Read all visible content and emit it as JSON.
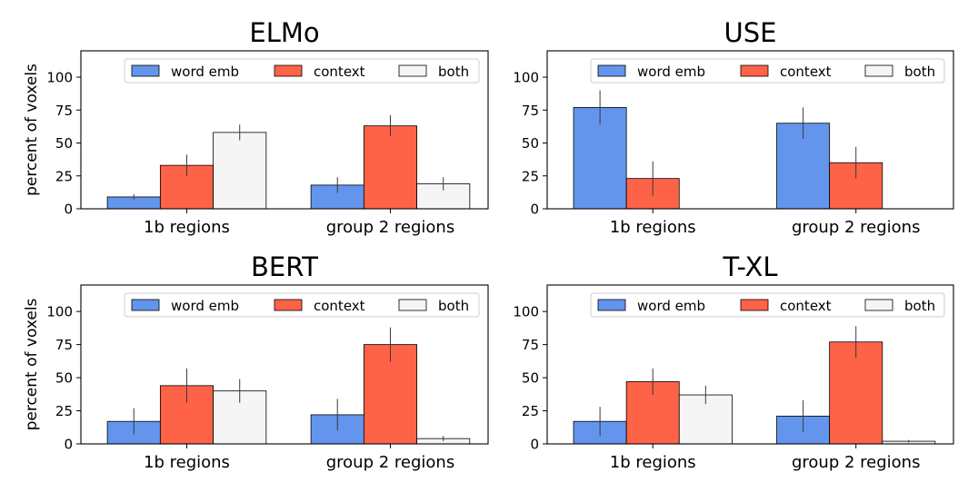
{
  "colors": {
    "word_emb": "#6495ed",
    "context": "#ff6347",
    "both": "#f5f5f5",
    "edge": "#000000",
    "errorbar": "#3a3a3a"
  },
  "chart_data": [
    {
      "type": "bar",
      "title": "ELMo",
      "xlabel": "",
      "ylabel": "percent of voxels",
      "categories": [
        "1b regions",
        "group 2 regions"
      ],
      "ylim": [
        0,
        120
      ],
      "yticks": [
        "0",
        "25",
        "50",
        "75",
        "100"
      ],
      "legend": "top-right",
      "grid": false,
      "series": [
        {
          "name": "word emb",
          "values": [
            9,
            18
          ],
          "err": [
            2,
            6
          ]
        },
        {
          "name": "context",
          "values": [
            33,
            63
          ],
          "err": [
            8,
            8
          ]
        },
        {
          "name": "both",
          "values": [
            58,
            19
          ],
          "err": [
            6,
            5
          ]
        }
      ]
    },
    {
      "type": "bar",
      "title": "USE",
      "xlabel": "",
      "ylabel": "",
      "categories": [
        "1b regions",
        "group 2 regions"
      ],
      "ylim": [
        0,
        120
      ],
      "yticks": [
        "0",
        "25",
        "50",
        "75",
        "100"
      ],
      "legend": "top-right",
      "grid": false,
      "series": [
        {
          "name": "word emb",
          "values": [
            77,
            65
          ],
          "err": [
            13,
            12
          ]
        },
        {
          "name": "context",
          "values": [
            23,
            35
          ],
          "err": [
            13,
            12
          ]
        },
        {
          "name": "both",
          "values": [
            0,
            0
          ],
          "err": [
            0,
            0
          ]
        }
      ]
    },
    {
      "type": "bar",
      "title": "BERT",
      "xlabel": "",
      "ylabel": "percent of voxels",
      "categories": [
        "1b regions",
        "group 2 regions"
      ],
      "ylim": [
        0,
        120
      ],
      "yticks": [
        "0",
        "25",
        "50",
        "75",
        "100"
      ],
      "legend": "top-right",
      "grid": false,
      "series": [
        {
          "name": "word emb",
          "values": [
            17,
            22
          ],
          "err": [
            10,
            12
          ]
        },
        {
          "name": "context",
          "values": [
            44,
            75
          ],
          "err": [
            13,
            13
          ]
        },
        {
          "name": "both",
          "values": [
            40,
            4
          ],
          "err": [
            9,
            2
          ]
        }
      ]
    },
    {
      "type": "bar",
      "title": "T-XL",
      "xlabel": "",
      "ylabel": "",
      "categories": [
        "1b regions",
        "group 2 regions"
      ],
      "ylim": [
        0,
        120
      ],
      "yticks": [
        "0",
        "25",
        "50",
        "75",
        "100"
      ],
      "legend": "top-right",
      "grid": false,
      "series": [
        {
          "name": "word emb",
          "values": [
            17,
            21
          ],
          "err": [
            11,
            12
          ]
        },
        {
          "name": "context",
          "values": [
            47,
            77
          ],
          "err": [
            10,
            12
          ]
        },
        {
          "name": "both",
          "values": [
            37,
            2
          ],
          "err": [
            7,
            1
          ]
        }
      ]
    }
  ]
}
